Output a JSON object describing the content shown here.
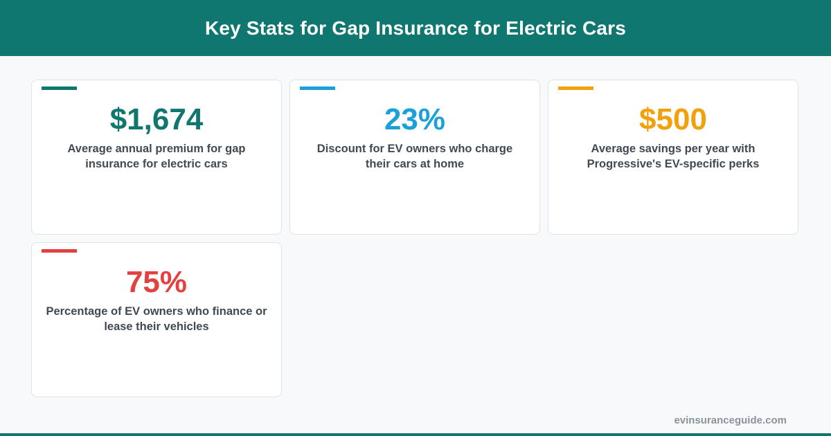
{
  "header": {
    "title": "Key Stats for Gap Insurance for Electric Cars",
    "color": "#107670"
  },
  "stats": [
    {
      "value": "$1,674",
      "description": "Average annual premium for gap insurance for electric cars",
      "color": "#107670"
    },
    {
      "value": "23%",
      "description": "Discount for EV owners who charge their cars at home",
      "color": "#1ba0d8"
    },
    {
      "value": "$500",
      "description": "Average savings per year with Progressive's EV-specific perks",
      "color": "#f1a10c"
    },
    {
      "value": "75%",
      "description": "Percentage of EV owners who finance or lease their vehicles",
      "color": "#e4403f"
    }
  ],
  "footer": {
    "site": "evinsuranceguide.com"
  }
}
